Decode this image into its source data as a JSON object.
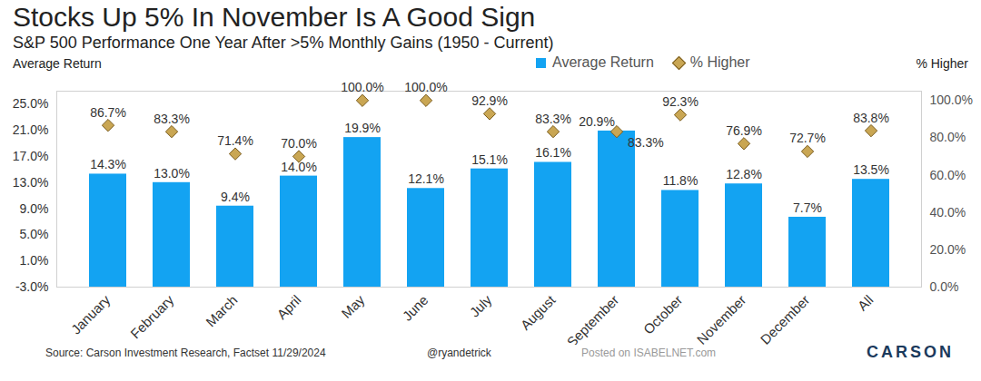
{
  "chart_data": {
    "type": "bar",
    "title": "Stocks Up 5% In November Is A Good Sign",
    "subtitle": "S&P 500 Performance One Year After >5% Monthly Gains (1950 - Current)",
    "categories": [
      "January",
      "February",
      "March",
      "April",
      "May",
      "June",
      "July",
      "August",
      "September",
      "October",
      "November",
      "December",
      "All"
    ],
    "series": [
      {
        "name": "Average Return",
        "type": "bar",
        "color": "#13a3f2",
        "values": [
          14.3,
          13.0,
          9.4,
          14.0,
          19.9,
          12.1,
          15.1,
          16.1,
          20.9,
          11.8,
          12.8,
          7.7,
          13.5
        ],
        "value_labels": [
          "14.3%",
          "13.0%",
          "9.4%",
          "14.0%",
          "19.9%",
          "12.1%",
          "15.1%",
          "16.1%",
          "20.9%",
          "11.8%",
          "12.8%",
          "7.7%",
          "13.5%"
        ]
      },
      {
        "name": "% Higher",
        "type": "scatter",
        "marker": "diamond",
        "color": "#c9a653",
        "axis": "y2",
        "values": [
          86.7,
          83.3,
          71.4,
          70.0,
          100.0,
          100.0,
          92.9,
          83.3,
          83.3,
          92.3,
          76.9,
          72.7,
          83.8
        ],
        "value_labels": [
          "86.7%",
          "83.3%",
          "71.4%",
          "70.0%",
          "100.0%",
          "100.0%",
          "92.9%",
          "83.3%",
          "83.3%",
          "92.3%",
          "76.9%",
          "72.7%",
          "83.8%"
        ]
      }
    ],
    "ylabel": "Average Return",
    "y2label": "% Higher",
    "ylim": [
      -3,
      27
    ],
    "yticks": [
      {
        "value": -3,
        "label": "-3.0%"
      },
      {
        "value": 1,
        "label": "1.0%"
      },
      {
        "value": 5,
        "label": "5.0%"
      },
      {
        "value": 9,
        "label": "9.0%"
      },
      {
        "value": 13,
        "label": "13.0%"
      },
      {
        "value": 17,
        "label": "17.0%"
      },
      {
        "value": 21,
        "label": "21.0%"
      },
      {
        "value": 25,
        "label": "25.0%"
      }
    ],
    "y2lim": [
      0,
      105
    ],
    "y2ticks": [
      {
        "value": 0,
        "label": "0.0%"
      },
      {
        "value": 20,
        "label": "20.0%"
      },
      {
        "value": 40,
        "label": "40.0%"
      },
      {
        "value": 60,
        "label": "60.0%"
      },
      {
        "value": 80,
        "label": "80.0%"
      },
      {
        "value": 100,
        "label": "100.0%"
      }
    ],
    "data_labels": true,
    "legend": "top",
    "grid": false,
    "source": "Source: Carson Investment Research, Factset 11/29/2024",
    "annotations": [
      "@ryandetrick",
      "Posted on ISABELNET.com",
      "CARSON"
    ]
  }
}
